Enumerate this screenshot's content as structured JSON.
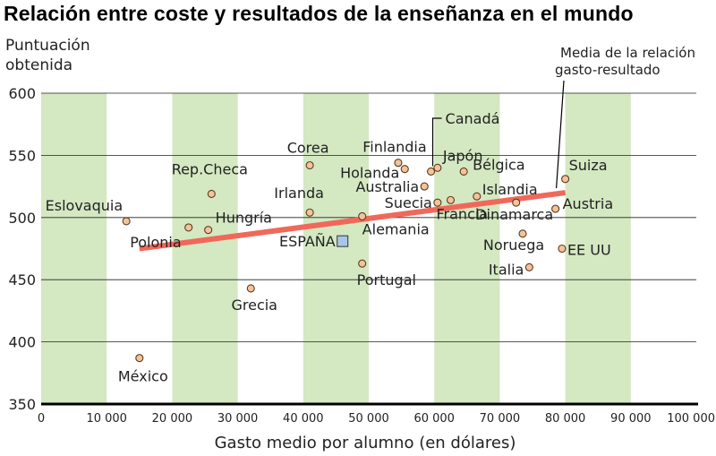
{
  "title": "Relación entre coste y resultados de la enseñanza en el mundo",
  "chart_data": {
    "type": "scatter",
    "ylabel": [
      "Puntuación",
      "obtenida"
    ],
    "xlabel": "Gasto medio por alumno (en dólares)",
    "xlim": [
      0,
      100000
    ],
    "ylim": [
      350,
      600
    ],
    "xticks": [
      0,
      10000,
      20000,
      30000,
      40000,
      50000,
      60000,
      70000,
      80000,
      90000,
      100000
    ],
    "xtick_labels": [
      "0",
      "10 000",
      "20 000",
      "30 000",
      "40 000",
      "50 000",
      "60 000",
      "70 000",
      "80 000",
      "90 000",
      "100 000"
    ],
    "yticks": [
      350,
      400,
      450,
      500,
      550,
      600
    ],
    "ytick_labels": [
      "350",
      "400",
      "450",
      "500",
      "550",
      "600"
    ],
    "grid": "horizontal",
    "band_color": "#d4e8c2",
    "point_color": "#f3c49a",
    "highlight_color": "#a9c6e8",
    "trend_color": "#f0685a",
    "trend_label": [
      "Media de la relación",
      "gasto-resultado"
    ],
    "trend": {
      "x": [
        15000,
        80000
      ],
      "y": [
        475,
        520
      ]
    },
    "points": [
      {
        "label": "Eslovaquia",
        "x": 13000,
        "y": 497
      },
      {
        "label": "Polonia",
        "x": 22500,
        "y": 492
      },
      {
        "label": "Hungría",
        "x": 25500,
        "y": 490
      },
      {
        "label": "Rep.Checa",
        "x": 26000,
        "y": 519
      },
      {
        "label": "México",
        "x": 15000,
        "y": 387
      },
      {
        "label": "Grecia",
        "x": 32000,
        "y": 443
      },
      {
        "label": "Corea",
        "x": 41000,
        "y": 542
      },
      {
        "label": "Irlanda",
        "x": 41000,
        "y": 504
      },
      {
        "label": "ESPAÑA",
        "x": 46000,
        "y": 481,
        "highlight": true
      },
      {
        "label": "Alemania",
        "x": 49000,
        "y": 501
      },
      {
        "label": "Portugal",
        "x": 49000,
        "y": 463
      },
      {
        "label": "Finlandia",
        "x": 54500,
        "y": 544
      },
      {
        "label": "Holanda",
        "x": 55500,
        "y": 539
      },
      {
        "label": "Australia",
        "x": 58500,
        "y": 525
      },
      {
        "label": "Suecia",
        "x": 60500,
        "y": 512
      },
      {
        "label": "Canadá",
        "x": 59500,
        "y": 537
      },
      {
        "label": "Japón",
        "x": 60500,
        "y": 540
      },
      {
        "label": "Francia",
        "x": 62500,
        "y": 514
      },
      {
        "label": "Bélgica",
        "x": 64500,
        "y": 537
      },
      {
        "label": "Islandia",
        "x": 66500,
        "y": 517
      },
      {
        "label": "Dinamarca",
        "x": 72500,
        "y": 512
      },
      {
        "label": "Noruega",
        "x": 73500,
        "y": 487
      },
      {
        "label": "Italia",
        "x": 74500,
        "y": 460
      },
      {
        "label": "Suiza",
        "x": 80000,
        "y": 531
      },
      {
        "label": "Austria",
        "x": 78500,
        "y": 507
      },
      {
        "label": "EE UU",
        "x": 79500,
        "y": 475
      }
    ]
  }
}
